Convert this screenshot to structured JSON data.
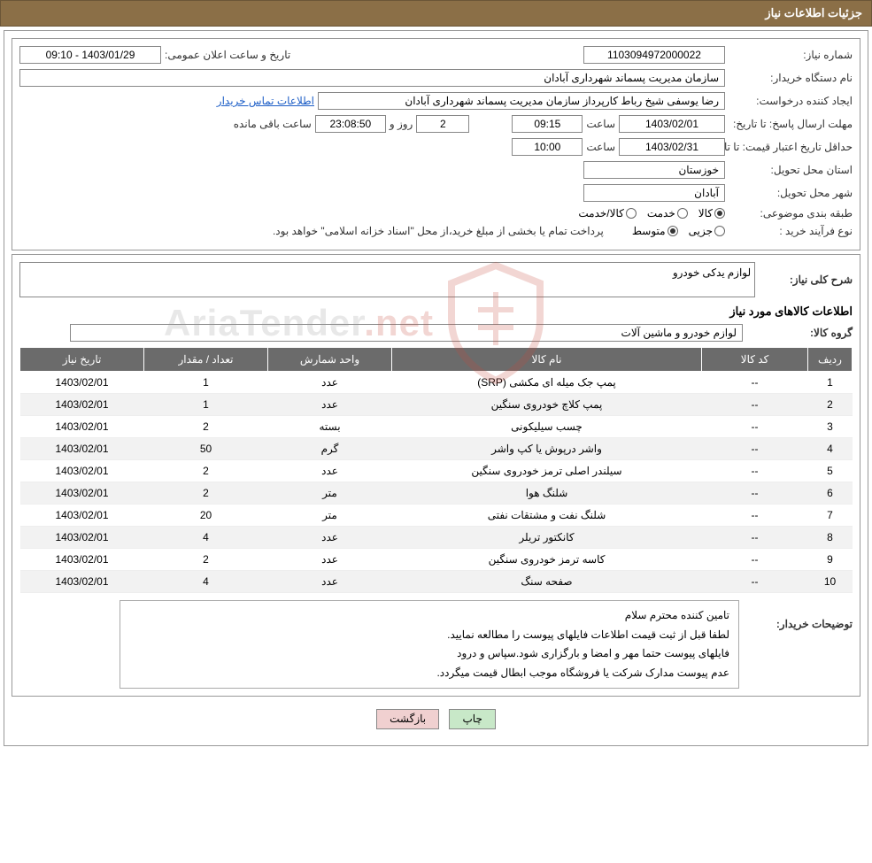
{
  "header": {
    "title": "جزئیات اطلاعات نیاز"
  },
  "form": {
    "need_number_label": "شماره نیاز:",
    "need_number": "1103094972000022",
    "announce_datetime_label": "تاریخ و ساعت اعلان عمومی:",
    "announce_datetime": "1403/01/29 - 09:10",
    "buyer_org_label": "نام دستگاه خریدار:",
    "buyer_org": "سازمان مدیریت پسماند شهرداری آبادان",
    "requester_label": "ایجاد کننده درخواست:",
    "requester": "رضا یوسفی شیخ رباط کارپرداز سازمان مدیریت پسماند شهرداری آبادان",
    "buyer_contact_link": "اطلاعات تماس خریدار",
    "response_deadline_label": "مهلت ارسال پاسخ: تا تاریخ:",
    "response_date": "1403/02/01",
    "time_label": "ساعت",
    "response_time": "09:15",
    "days_remaining": "2",
    "days_label": "روز و",
    "time_remaining": "23:08:50",
    "remaining_label": "ساعت باقی مانده",
    "price_validity_label": "حداقل تاریخ اعتبار قیمت: تا تاریخ:",
    "price_validity_date": "1403/02/31",
    "price_validity_time": "10:00",
    "province_label": "استان محل تحویل:",
    "province": "خوزستان",
    "city_label": "شهر محل تحویل:",
    "city": "آبادان",
    "classification_label": "طبقه بندی موضوعی:",
    "class_goods": "کالا",
    "class_service": "خدمت",
    "class_goods_service": "کالا/خدمت",
    "purchase_type_label": "نوع فرآیند خرید :",
    "purchase_partial": "جزیی",
    "purchase_medium": "متوسط",
    "purchase_note": "پرداخت تمام یا بخشی از مبلغ خرید،از محل \"اسناد خزانه اسلامی\" خواهد بود."
  },
  "need_desc": {
    "title_label": "شرح کلی نیاز:",
    "text": "لوازم یدکی خودرو"
  },
  "items": {
    "section_title": "اطلاعات کالاهای مورد نیاز",
    "group_label": "گروه کالا:",
    "group_value": "لوازم خودرو و ماشین آلات",
    "columns": {
      "row": "ردیف",
      "code": "کد کالا",
      "name": "نام کالا",
      "unit": "واحد شمارش",
      "qty": "تعداد / مقدار",
      "date": "تاریخ نیاز"
    },
    "rows": [
      {
        "r": "1",
        "code": "--",
        "name": "پمپ جک میله ای مکشی (SRP)",
        "unit": "عدد",
        "qty": "1",
        "date": "1403/02/01"
      },
      {
        "r": "2",
        "code": "--",
        "name": "پمپ کلاچ خودروی سنگین",
        "unit": "عدد",
        "qty": "1",
        "date": "1403/02/01"
      },
      {
        "r": "3",
        "code": "--",
        "name": "چسب سیلیکونی",
        "unit": "بسته",
        "qty": "2",
        "date": "1403/02/01"
      },
      {
        "r": "4",
        "code": "--",
        "name": "واشر درپوش یا کپ واشر",
        "unit": "گرم",
        "qty": "50",
        "date": "1403/02/01"
      },
      {
        "r": "5",
        "code": "--",
        "name": "سیلندر اصلی ترمز خودروی سنگین",
        "unit": "عدد",
        "qty": "2",
        "date": "1403/02/01"
      },
      {
        "r": "6",
        "code": "--",
        "name": "شلنگ هوا",
        "unit": "متر",
        "qty": "2",
        "date": "1403/02/01"
      },
      {
        "r": "7",
        "code": "--",
        "name": "شلنگ نفت و مشتقات نفتی",
        "unit": "متر",
        "qty": "20",
        "date": "1403/02/01"
      },
      {
        "r": "8",
        "code": "--",
        "name": "کانکتور تریلر",
        "unit": "عدد",
        "qty": "4",
        "date": "1403/02/01"
      },
      {
        "r": "9",
        "code": "--",
        "name": "کاسه ترمز خودروی سنگین",
        "unit": "عدد",
        "qty": "2",
        "date": "1403/02/01"
      },
      {
        "r": "10",
        "code": "--",
        "name": "صفحه سنگ",
        "unit": "عدد",
        "qty": "4",
        "date": "1403/02/01"
      }
    ]
  },
  "buyer_notes": {
    "label": "توضیحات خریدار:",
    "line1": "تامین کننده محترم سلام",
    "line2": "لطفا قبل از ثبت قیمت اطلاعات فایلهای پیوست را مطالعه نمایید.",
    "line3": "فایلهای پیوست حتما مهر و امضا و بارگزاری شود.سپاس و درود",
    "line4": "عدم پیوست مدارک شرکت یا فروشگاه موجب ابطال قیمت میگردد."
  },
  "buttons": {
    "print": "چاپ",
    "back": "بازگشت"
  },
  "watermark": {
    "text_main": "AriaTender",
    "text_suffix": ".net",
    "shield_color": "#c94a3b"
  }
}
